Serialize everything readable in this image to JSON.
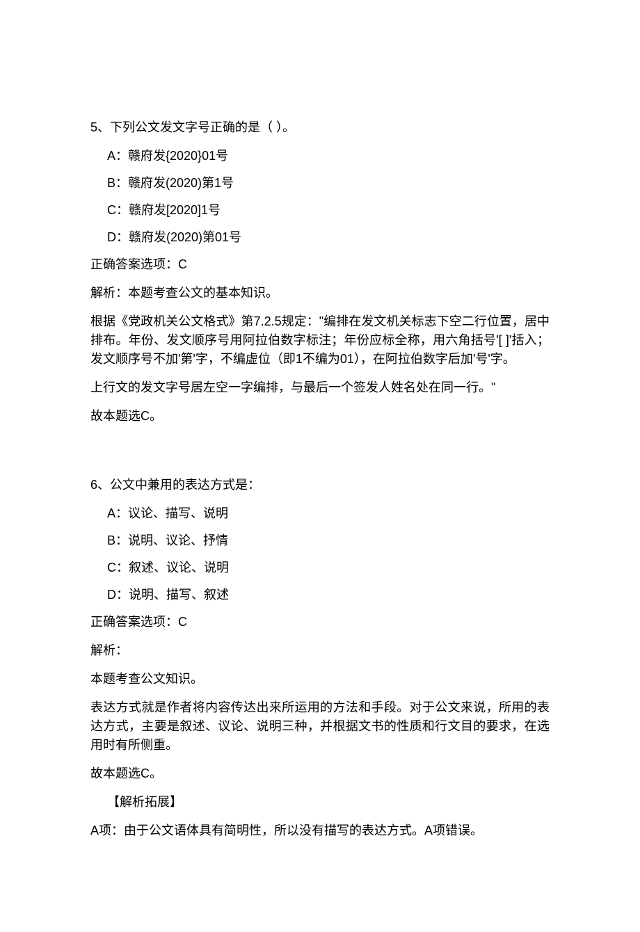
{
  "q5": {
    "title": "5、下列公文发文字号正确的是（ ）。",
    "options": {
      "a": "A：赣府发{2020}01号",
      "b": "B：赣府发(2020)第1号",
      "c": "C：赣府发[2020]1号",
      "d": "D：赣府发(2020)第01号"
    },
    "answer": "正确答案选项：C",
    "explain1": "解析：本题考查公文的基本知识。",
    "explain2": "根据《党政机关公文格式》第7.2.5规定：\"编排在发文机关标志下空二行位置，居中排布。年份、发文顺序号用阿拉伯数字标注；年份应标全称，用六角括号'[ ]'括入；发文顺序号不加'第'字，不编虚位（即1不编为01），在阿拉伯数字后加'号'字。",
    "explain3": "上行文的发文字号居左空一字编排，与最后一个签发人姓名处在同一行。\"",
    "explain4": "故本题选C。"
  },
  "q6": {
    "title": "6、公文中兼用的表达方式是：",
    "options": {
      "a": "A：议论、描写、说明",
      "b": "B：说明、议论、抒情",
      "c": "C：叙述、议论、说明",
      "d": "D：说明、描写、叙述"
    },
    "answer": "正确答案选项：C",
    "explain1": "解析：",
    "explain2": "本题考查公文知识。",
    "explain3": "表达方式就是作者将内容传达出来所运用的方法和手段。对于公文来说，所用的表达方式，主要是叙述、议论、说明三种，并根据文书的性质和行文目的要求，在选用时有所侧重。",
    "explain4": "故本题选C。",
    "expand_title": "【解析拓展】",
    "expand_a": "A项：由于公文语体具有简明性，所以没有描写的表达方式。A项错误。"
  }
}
